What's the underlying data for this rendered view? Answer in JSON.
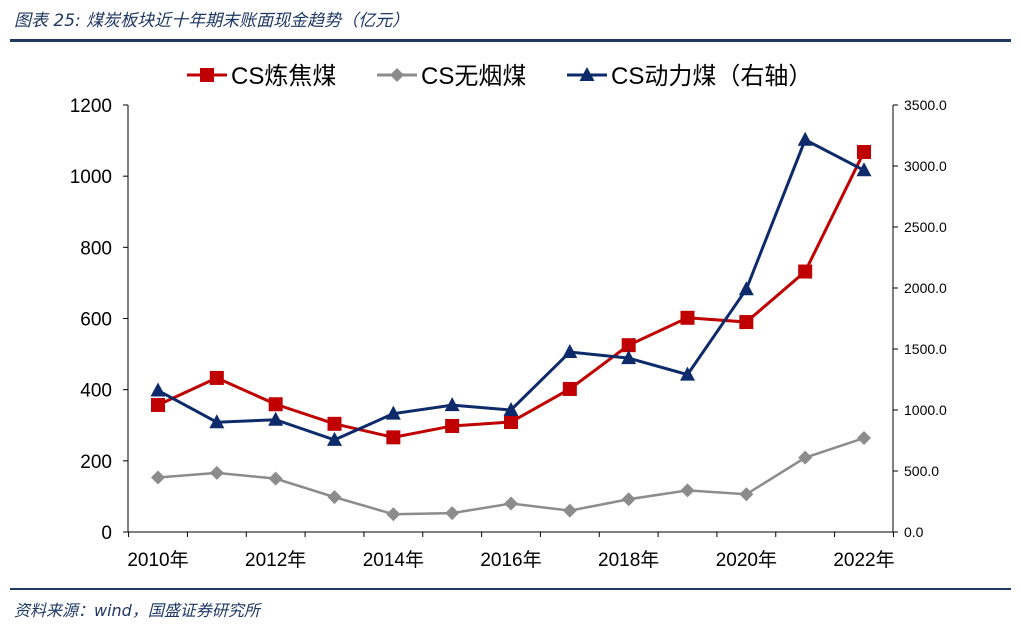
{
  "caption": "图表 25:  煤炭板块近十年期末账面现金趋势（亿元）",
  "source": "资料来源：wind，国盛证券研究所",
  "chart_data": {
    "type": "line",
    "x": [
      "2010年",
      "2011年",
      "2012年",
      "2013年",
      "2014年",
      "2015年",
      "2016年",
      "2017年",
      "2018年",
      "2019年",
      "2020年",
      "2021年",
      "2022年"
    ],
    "xtick_labels": [
      "2010年",
      "2012年",
      "2014年",
      "2016年",
      "2018年",
      "2020年",
      "2022年"
    ],
    "series": [
      {
        "name": "CS炼焦煤",
        "axis": "left",
        "marker": "square",
        "color": "#c00000",
        "values": [
          357,
          433,
          359,
          304,
          266,
          298,
          309,
          402,
          525,
          602,
          590,
          732,
          1068
        ]
      },
      {
        "name": "CS无烟煤",
        "axis": "left",
        "marker": "diamond",
        "color": "#8c8c8c",
        "values": [
          153,
          166,
          150,
          98,
          50,
          53,
          80,
          60,
          92,
          117,
          106,
          209,
          264
        ]
      },
      {
        "name": "CS动力煤（右轴）",
        "axis": "right",
        "marker": "triangle",
        "color": "#0d2a6b",
        "values": [
          1160,
          900,
          920,
          755,
          970,
          1040,
          1000,
          1475,
          1425,
          1290,
          1990,
          3215,
          2965
        ]
      }
    ],
    "y_left": {
      "ylim": [
        0,
        1200
      ],
      "ticks": [
        "0",
        "200",
        "400",
        "600",
        "800",
        "1000",
        "1200"
      ]
    },
    "y_right": {
      "ylim": [
        0,
        3500
      ],
      "ticks": [
        "0.0",
        "500.0",
        "1000.0",
        "1500.0",
        "2000.0",
        "2500.0",
        "3000.0",
        "3500.0"
      ]
    },
    "legend": "top-center",
    "grid": false
  }
}
